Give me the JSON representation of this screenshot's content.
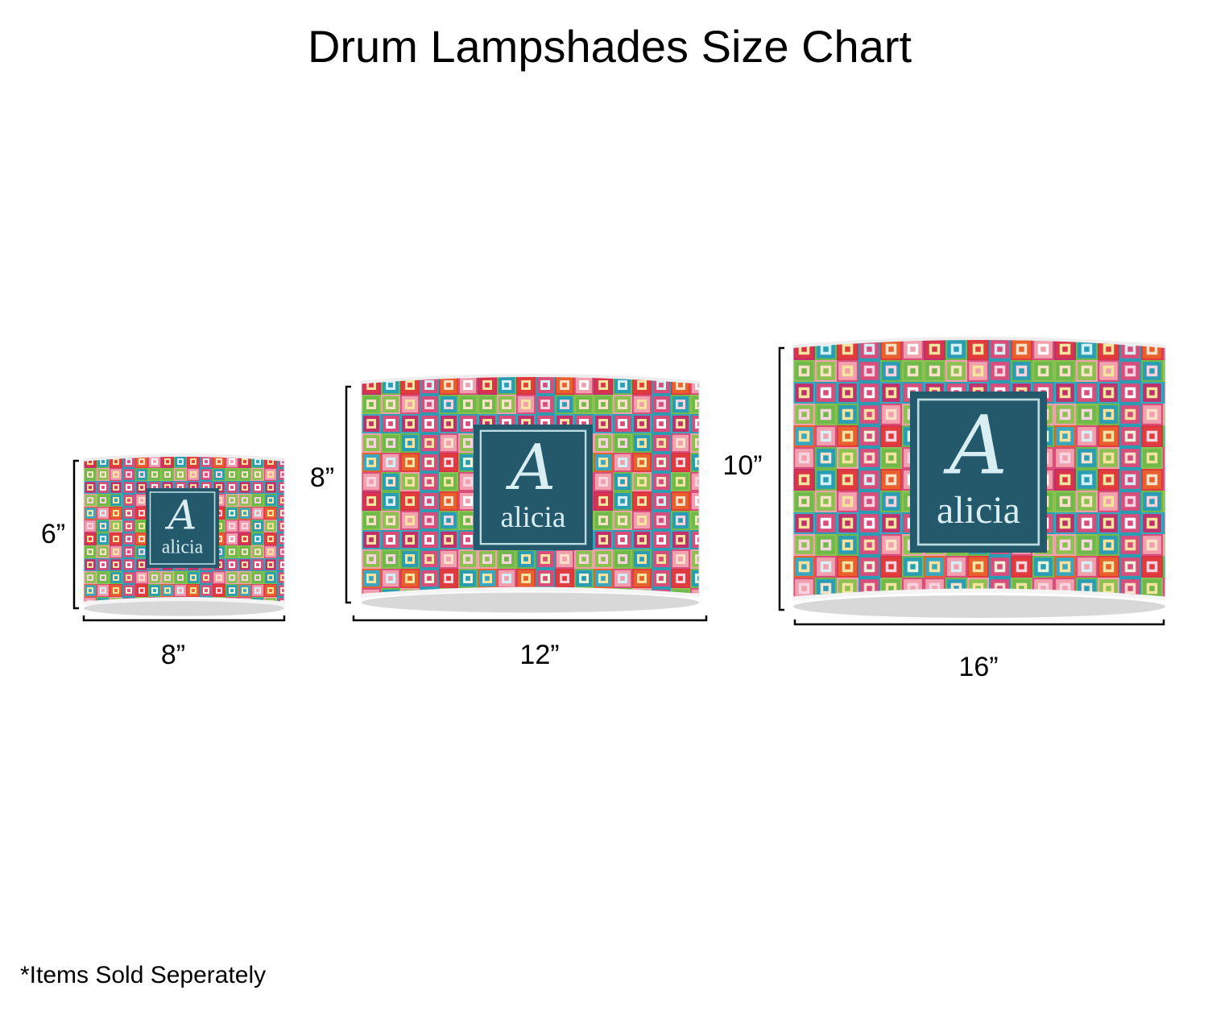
{
  "header": {
    "title": "Drum Lampshades Size Chart"
  },
  "lampshades": [
    {
      "height": "6”",
      "width": "8”",
      "monogram": "A",
      "name": "alicia"
    },
    {
      "height": "8”",
      "width": "12”",
      "monogram": "A",
      "name": "alicia"
    },
    {
      "height": "10”",
      "width": "16”",
      "monogram": "A",
      "name": "alicia"
    }
  ],
  "footnote": "*Items Sold Seperately"
}
